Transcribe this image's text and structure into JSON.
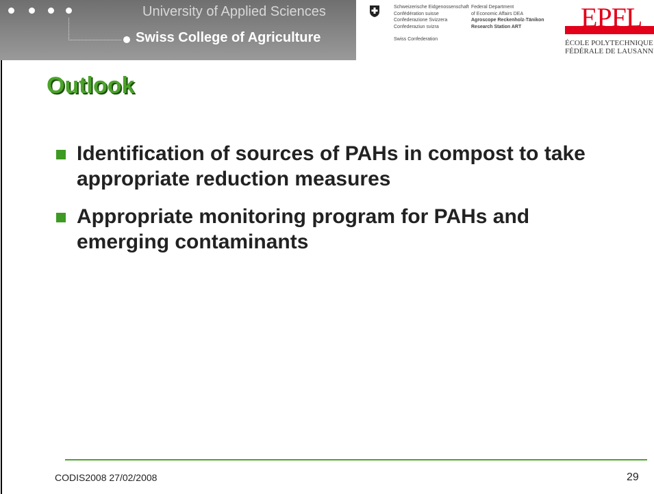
{
  "header": {
    "university": "University of Applied Sciences",
    "college": "Swiss College of Agriculture",
    "confederation": [
      "Schweizerische Eidgenossenschaft",
      "Confédération suisse",
      "Confederazione Svizzera",
      "Confederaziun svizra",
      "Swiss Confederation"
    ],
    "department": [
      "Federal Department",
      "of Economic Affairs DEA",
      "Agroscope Reckenholz-Tänikon",
      "Research Station ART"
    ],
    "epfl": {
      "logo": "EPFL",
      "line1": "ÉCOLE POLYTECHNIQUE",
      "line2": "FÉDÉRALE DE LAUSANNE"
    }
  },
  "title": "Outlook",
  "bullets": [
    "Identification of sources of PAHs in compost to take appropriate reduction measures",
    "Appropriate monitoring program for PAHs and emerging contaminants"
  ],
  "footer": {
    "left": "CODIS2008 27/02/2008",
    "page": "29"
  }
}
